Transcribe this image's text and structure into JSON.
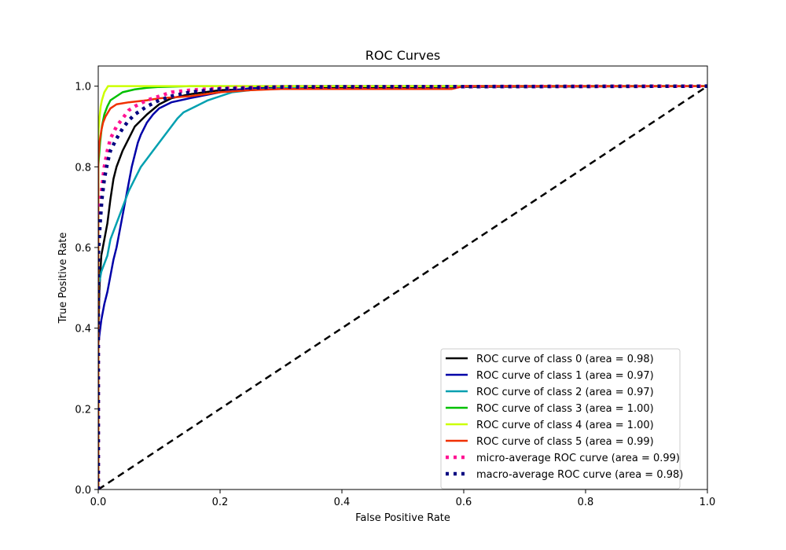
{
  "chart_data": {
    "type": "line",
    "title": "ROC Curves",
    "xlabel": "False Positive Rate",
    "ylabel": "True Positive Rate",
    "xlim": [
      0.0,
      1.0
    ],
    "ylim": [
      0.0,
      1.05
    ],
    "xticks": [
      "0.0",
      "0.2",
      "0.4",
      "0.6",
      "0.8",
      "1.0"
    ],
    "xtick_values": [
      0.0,
      0.2,
      0.4,
      0.6,
      0.8,
      1.0
    ],
    "yticks": [
      "0.0",
      "0.2",
      "0.4",
      "0.6",
      "0.8",
      "1.0"
    ],
    "ytick_values": [
      0.0,
      0.2,
      0.4,
      0.6,
      0.8,
      1.0
    ],
    "grid": false,
    "legend_position": "lower-right",
    "series": [
      {
        "name": "ROC curve of class 0 (area = 0.98)",
        "color": "#000000",
        "style": "solid",
        "x": [
          0.0,
          0.0,
          0.002,
          0.005,
          0.01,
          0.015,
          0.02,
          0.025,
          0.03,
          0.04,
          0.05,
          0.06,
          0.08,
          0.1,
          0.12,
          0.15,
          0.2,
          0.3,
          0.5,
          1.0
        ],
        "y": [
          0.0,
          0.38,
          0.5,
          0.58,
          0.62,
          0.66,
          0.72,
          0.77,
          0.8,
          0.84,
          0.87,
          0.9,
          0.93,
          0.955,
          0.97,
          0.98,
          0.99,
          0.995,
          0.998,
          1.0
        ]
      },
      {
        "name": "ROC curve of class 1 (area = 0.97)",
        "color": "#0000a8",
        "style": "solid",
        "x": [
          0.0,
          0.0,
          0.005,
          0.01,
          0.015,
          0.02,
          0.025,
          0.03,
          0.035,
          0.04,
          0.045,
          0.05,
          0.055,
          0.06,
          0.065,
          0.07,
          0.08,
          0.09,
          0.1,
          0.12,
          0.15,
          0.2,
          0.25,
          0.3,
          1.0
        ],
        "y": [
          0.0,
          0.36,
          0.42,
          0.46,
          0.49,
          0.53,
          0.57,
          0.6,
          0.64,
          0.68,
          0.72,
          0.76,
          0.8,
          0.83,
          0.86,
          0.88,
          0.91,
          0.93,
          0.945,
          0.96,
          0.97,
          0.985,
          0.995,
          1.0,
          1.0
        ]
      },
      {
        "name": "ROC curve of class 2 (area = 0.97)",
        "color": "#00a0b0",
        "style": "solid",
        "x": [
          0.0,
          0.0,
          0.005,
          0.01,
          0.015,
          0.02,
          0.03,
          0.04,
          0.05,
          0.06,
          0.07,
          0.08,
          0.09,
          0.1,
          0.11,
          0.12,
          0.13,
          0.14,
          0.16,
          0.18,
          0.2,
          0.22,
          0.25,
          0.3,
          0.35,
          1.0
        ],
        "y": [
          0.0,
          0.5,
          0.54,
          0.56,
          0.58,
          0.62,
          0.66,
          0.7,
          0.74,
          0.77,
          0.8,
          0.82,
          0.84,
          0.86,
          0.88,
          0.9,
          0.92,
          0.935,
          0.95,
          0.965,
          0.975,
          0.985,
          0.99,
          0.995,
          1.0,
          1.0
        ]
      },
      {
        "name": "ROC curve of class 3 (area = 1.00)",
        "color": "#00c000",
        "style": "solid",
        "x": [
          0.0,
          0.0,
          0.003,
          0.006,
          0.01,
          0.015,
          0.02,
          0.03,
          0.04,
          0.06,
          0.08,
          0.1,
          0.15,
          1.0
        ],
        "y": [
          0.0,
          0.8,
          0.86,
          0.9,
          0.93,
          0.95,
          0.965,
          0.975,
          0.985,
          0.992,
          0.996,
          0.998,
          1.0,
          1.0
        ]
      },
      {
        "name": "ROC curve of class 4 (area = 1.00)",
        "color": "#ccff00",
        "style": "solid",
        "x": [
          0.0,
          0.0,
          0.002,
          0.004,
          0.006,
          0.008,
          0.01,
          0.012,
          0.014,
          0.016,
          1.0
        ],
        "y": [
          0.0,
          0.88,
          0.92,
          0.95,
          0.965,
          0.975,
          0.985,
          0.99,
          0.995,
          1.0,
          1.0
        ]
      },
      {
        "name": "ROC curve of class 5 (area = 0.99)",
        "color": "#f03000",
        "style": "solid",
        "x": [
          0.0,
          0.0,
          0.002,
          0.005,
          0.008,
          0.012,
          0.016,
          0.02,
          0.03,
          0.05,
          0.08,
          0.1,
          0.15,
          0.2,
          0.25,
          0.3,
          0.45,
          0.58,
          0.6,
          1.0
        ],
        "y": [
          0.0,
          0.82,
          0.86,
          0.89,
          0.91,
          0.925,
          0.935,
          0.945,
          0.955,
          0.96,
          0.965,
          0.97,
          0.975,
          0.985,
          0.99,
          0.993,
          0.993,
          0.993,
          1.0,
          1.0
        ]
      },
      {
        "name": "micro-average ROC curve (area = 0.99)",
        "color": "#ff1493",
        "style": "dotted",
        "x": [
          0.0,
          0.0,
          0.003,
          0.006,
          0.01,
          0.015,
          0.02,
          0.03,
          0.04,
          0.05,
          0.06,
          0.08,
          0.1,
          0.12,
          0.15,
          0.2,
          0.3,
          1.0
        ],
        "y": [
          0.0,
          0.62,
          0.7,
          0.75,
          0.8,
          0.84,
          0.87,
          0.9,
          0.92,
          0.94,
          0.95,
          0.965,
          0.975,
          0.985,
          0.99,
          0.995,
          0.998,
          1.0
        ]
      },
      {
        "name": "macro-average ROC curve (area = 0.98)",
        "color": "#000080",
        "style": "dotted",
        "x": [
          0.0,
          0.0,
          0.003,
          0.006,
          0.01,
          0.015,
          0.02,
          0.03,
          0.04,
          0.05,
          0.06,
          0.08,
          0.1,
          0.12,
          0.15,
          0.2,
          0.3,
          1.0
        ],
        "y": [
          0.0,
          0.58,
          0.66,
          0.72,
          0.77,
          0.81,
          0.84,
          0.87,
          0.895,
          0.915,
          0.93,
          0.95,
          0.965,
          0.975,
          0.985,
          0.993,
          0.998,
          1.0
        ]
      }
    ],
    "reference_line": {
      "x": [
        0.0,
        1.0
      ],
      "y": [
        0.0,
        1.0
      ],
      "color": "#000000",
      "style": "dashed"
    }
  }
}
